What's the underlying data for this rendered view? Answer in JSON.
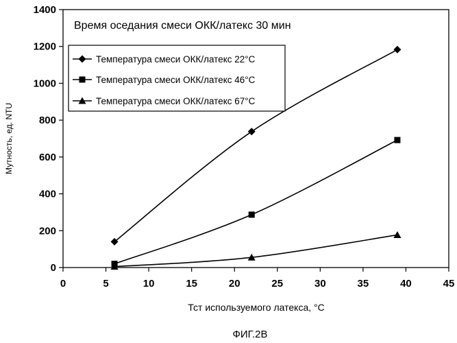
{
  "chart_data": {
    "type": "line",
    "title": "Время оседания смеси ОКК/латекс 30 мин",
    "xlabel": "Тст используемого латекса, °С",
    "ylabel": "Мутность, ед. NTU",
    "xlim": [
      0,
      45
    ],
    "ylim": [
      0,
      1400
    ],
    "xticks": [
      0,
      5,
      10,
      15,
      20,
      25,
      30,
      35,
      40,
      45
    ],
    "yticks": [
      0,
      200,
      400,
      600,
      800,
      1000,
      1200,
      1400
    ],
    "grid": false,
    "legend_position": "top-left, inside plot area",
    "series": [
      {
        "name": "Температура смеси ОКК/латекс 22°С",
        "marker": "diamond",
        "color": "#000000",
        "x": [
          6,
          22,
          39
        ],
        "y": [
          140,
          738,
          1183
        ]
      },
      {
        "name": "Температура смеси ОКК/латекс 46°С",
        "marker": "square",
        "color": "#000000",
        "x": [
          6,
          22,
          39
        ],
        "y": [
          20,
          287,
          692
        ]
      },
      {
        "name": "Температура смеси ОКК/латекс 67°С",
        "marker": "triangle",
        "color": "#000000",
        "x": [
          6,
          22,
          39
        ],
        "y": [
          5,
          55,
          177
        ]
      }
    ]
  },
  "figure_caption": "ФИГ.2В"
}
